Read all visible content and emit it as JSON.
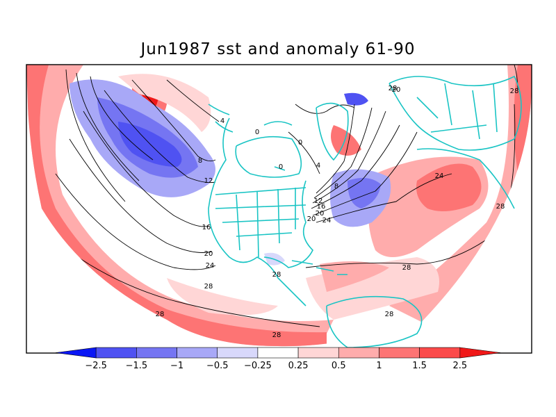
{
  "title": "Jun1987 sst and anomaly 61-90",
  "legend": {
    "ticks": [
      "-2.5",
      "-1.5",
      "-1",
      "-0.5",
      "-0.25",
      "0.25",
      "0.5",
      "1",
      "1.5",
      "2.5"
    ],
    "colors": [
      "#0a17f5",
      "#4f52f2",
      "#7575f2",
      "#a8a8f7",
      "#d8d8fb",
      "#ffffff",
      "#ffd6d6",
      "#ffacac",
      "#fd7474",
      "#fb4a4a",
      "#f01818"
    ]
  },
  "contour_labels": [
    "28",
    "24",
    "20",
    "16",
    "12",
    "8",
    "4",
    "0",
    "20",
    "28",
    "24",
    "28",
    "28",
    "28",
    "24",
    "20",
    "16",
    "12",
    "8",
    "4",
    "0",
    "0",
    "28",
    "28",
    "28",
    "28",
    "20"
  ],
  "colors": {
    "land_outline": "#19c4c4",
    "contour": "#000000",
    "frame": "#000000"
  }
}
